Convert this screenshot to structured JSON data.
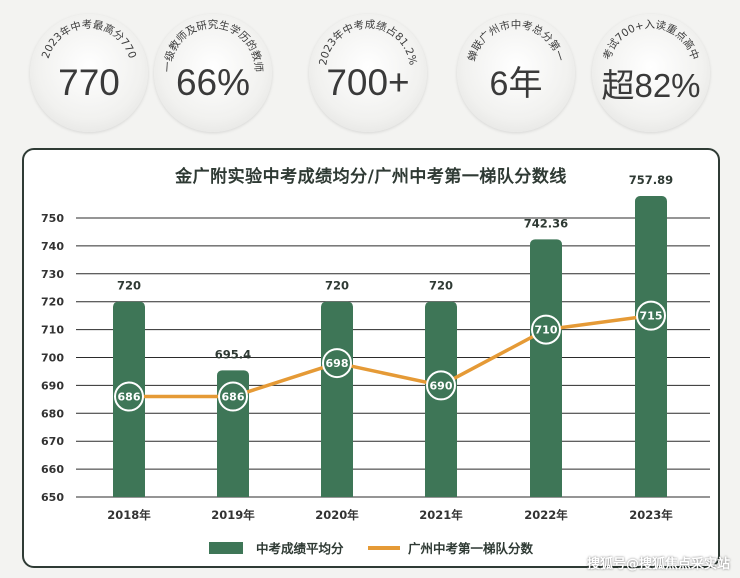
{
  "stats": [
    {
      "caption": "2023年中考最高分770",
      "value": "770"
    },
    {
      "caption": "一级教师及研究生学历的教师",
      "value": "66%"
    },
    {
      "caption": "2023年中考成绩占81.2%",
      "value": "700+"
    },
    {
      "caption": "蝉联广州市中考总分第一",
      "value": "6年"
    },
    {
      "caption": "考试700+入读重点高中",
      "value": "超82%"
    }
  ],
  "colors": {
    "bar": "#3e7657",
    "line": "#e59a36",
    "point_fill": "#3e7657",
    "point_stroke": "#ffffff"
  },
  "chart_data": {
    "type": "bar",
    "title": "金广附实验中考成绩均分/广州中考第一梯队分数线",
    "categories": [
      "2018年",
      "2019年",
      "2020年",
      "2021年",
      "2022年",
      "2023年"
    ],
    "ylim": [
      650,
      760
    ],
    "yticks": [
      650,
      660,
      670,
      680,
      690,
      700,
      710,
      720,
      730,
      740,
      750
    ],
    "grid": true,
    "legend_position": "bottom",
    "series": [
      {
        "name": "中考成绩平均分",
        "type": "bar",
        "values": [
          720,
          695.4,
          720,
          720,
          742.36,
          757.89
        ],
        "labels": [
          "720",
          "695.4",
          "720",
          "720",
          "742.36",
          "757.89"
        ]
      },
      {
        "name": "广州中考第一梯队分数",
        "type": "line",
        "values": [
          686,
          686,
          698,
          690,
          710,
          715
        ],
        "labels": [
          "686",
          "686",
          "698",
          "690",
          "710",
          "715"
        ]
      }
    ]
  },
  "watermark": "搜狐号@搜狐焦点采实站"
}
